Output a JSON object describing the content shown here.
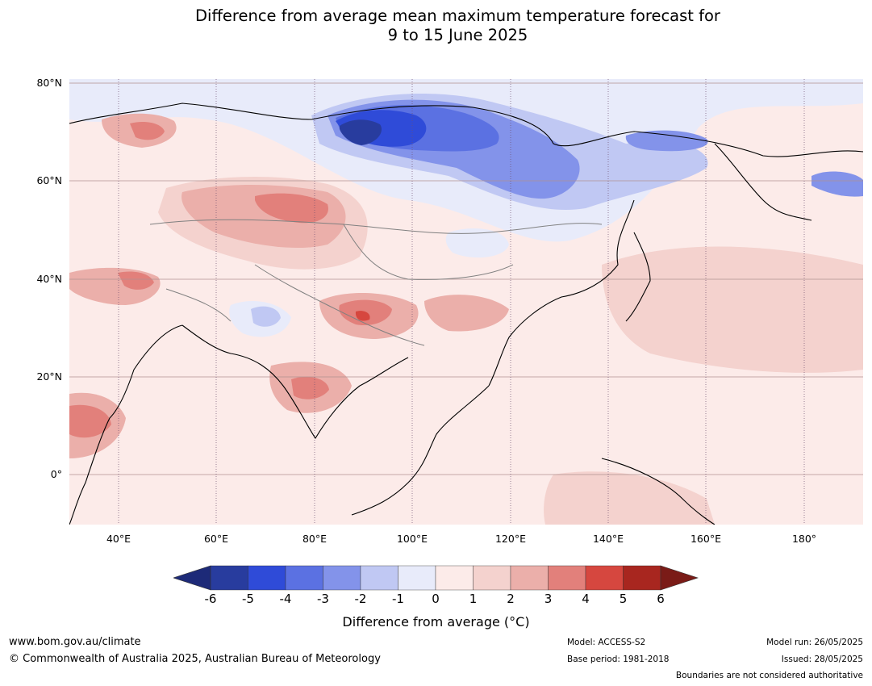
{
  "title_line1": "Difference from average mean maximum temperature forecast for",
  "title_line2": "9 to 15 June 2025",
  "lat_labels": [
    "80°N",
    "60°N",
    "40°N",
    "20°N",
    "0°"
  ],
  "lon_labels": [
    "40°E",
    "60°E",
    "80°E",
    "100°E",
    "120°E",
    "140°E",
    "160°E",
    "180°"
  ],
  "colorbar": {
    "ticks": [
      "-6",
      "-5",
      "-4",
      "-3",
      "-2",
      "-1",
      "0",
      "1",
      "2",
      "3",
      "4",
      "5",
      "6"
    ],
    "colors": [
      "#283c9e",
      "#2f4bd8",
      "#5b71e2",
      "#8393ea",
      "#c0c8f3",
      "#e8ebfa",
      "#fcebe9",
      "#f4d2ce",
      "#ebafaa",
      "#e2807b",
      "#d6473f",
      "#a8261f"
    ],
    "under_color": "#1d2a78",
    "over_color": "#7a1b17",
    "label": "Difference from average (°C)"
  },
  "footer": {
    "website": "www.bom.gov.au/climate",
    "copyright": "© Commonwealth of Australia 2025, Australian Bureau of Meteorology",
    "model": "Model: ACCESS-S2",
    "base_period": "Base period: 1981-2018",
    "model_run": "Model run: 26/05/2025",
    "issued": "Issued: 28/05/2025",
    "disclaimer": "Boundaries are not considered authoritative"
  }
}
